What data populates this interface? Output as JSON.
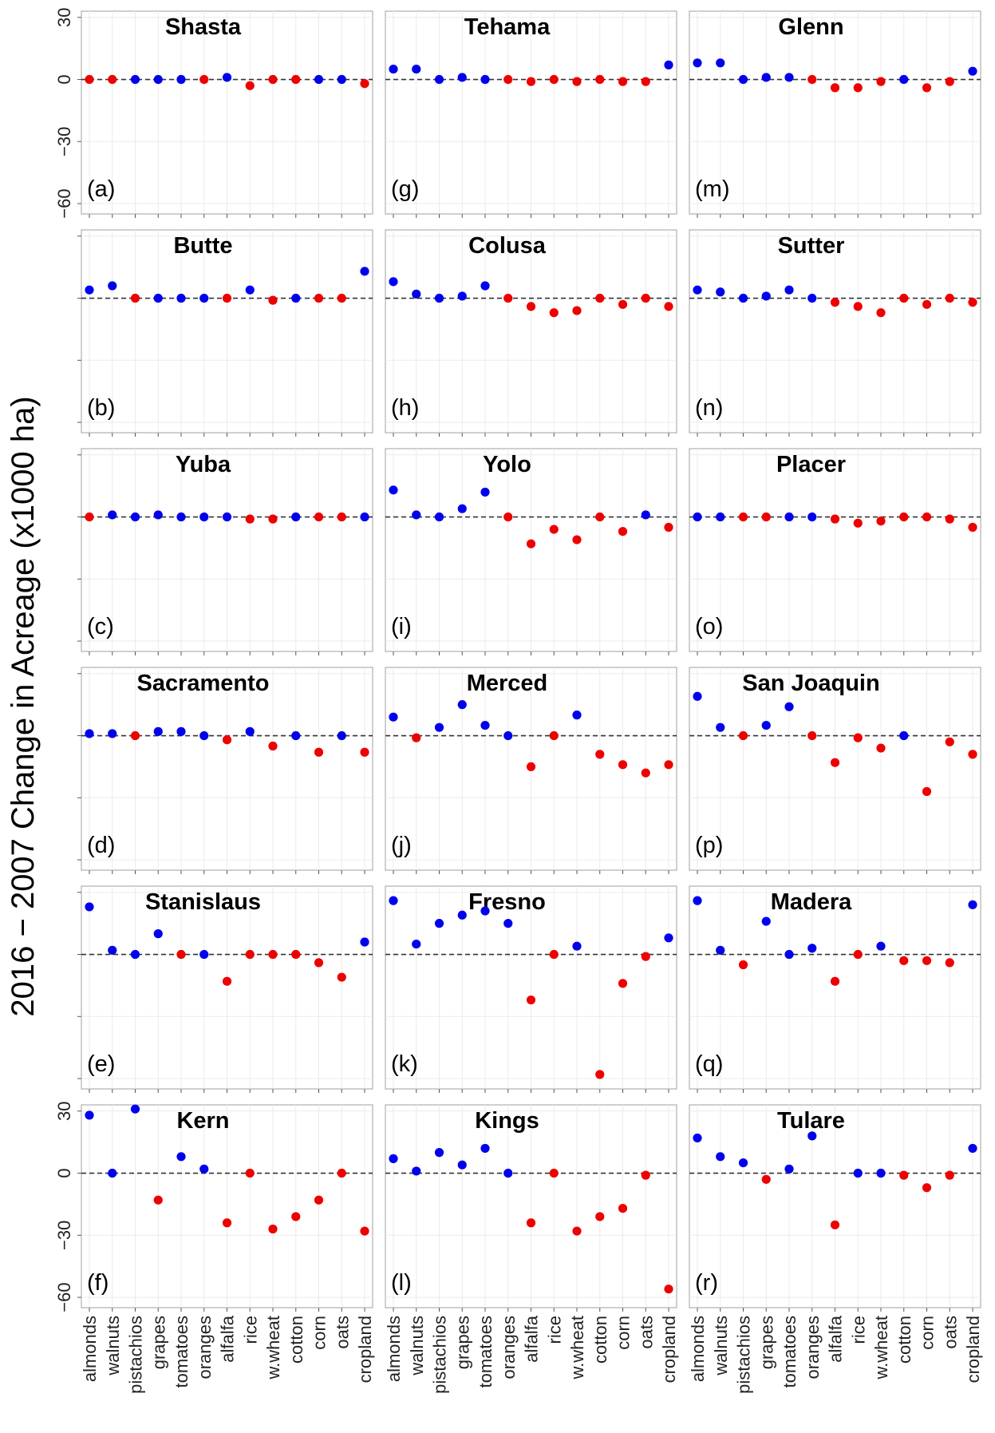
{
  "figure_ylabel": "2016 − 2007 Change in Acreage (x1000 ha)",
  "colors": {
    "increase": "#0000ee",
    "decrease": "#ee0000",
    "zero_line": "#333333",
    "frame": "#bfbfbf",
    "grid": "#ebebeb"
  },
  "chart_data": {
    "type": "scatter",
    "categories": [
      "almonds",
      "walnuts",
      "pistachios",
      "grapes",
      "tomatoes",
      "oranges",
      "alfalfa",
      "rice",
      "w.wheat",
      "cotton",
      "corn",
      "oats",
      "cropland"
    ],
    "ylim": [
      -65,
      33
    ],
    "yticks": [
      30,
      0,
      -30,
      -60
    ],
    "ytick_labels": [
      "30",
      "0",
      "−30",
      "−60"
    ],
    "panels": [
      {
        "id": "a",
        "label": "(a)",
        "title": "Shasta",
        "col": 0,
        "row": 0,
        "values": [
          0,
          0,
          0,
          0,
          0,
          0,
          1,
          -3,
          0,
          0,
          0,
          0,
          -2
        ],
        "colors": [
          "r",
          "r",
          "b",
          "b",
          "b",
          "r",
          "b",
          "r",
          "r",
          "r",
          "b",
          "b",
          "r"
        ]
      },
      {
        "id": "b",
        "label": "(b)",
        "title": "Butte",
        "col": 0,
        "row": 1,
        "values": [
          4,
          6,
          0,
          0,
          0,
          0,
          0,
          4,
          -1,
          0,
          0,
          0,
          13
        ],
        "colors": [
          "b",
          "b",
          "r",
          "b",
          "b",
          "b",
          "r",
          "b",
          "r",
          "b",
          "r",
          "r",
          "b"
        ]
      },
      {
        "id": "c",
        "label": "(c)",
        "title": "Yuba",
        "col": 0,
        "row": 2,
        "values": [
          0,
          1,
          0,
          1,
          0,
          0,
          0,
          -1,
          -1,
          0,
          0,
          0,
          0
        ],
        "colors": [
          "r",
          "b",
          "b",
          "b",
          "b",
          "b",
          "b",
          "r",
          "r",
          "b",
          "r",
          "r",
          "b"
        ]
      },
      {
        "id": "d",
        "label": "(d)",
        "title": "Sacramento",
        "col": 0,
        "row": 3,
        "values": [
          1,
          1,
          0,
          2,
          2,
          0,
          -2,
          2,
          -5,
          0,
          -8,
          0,
          -8
        ],
        "colors": [
          "b",
          "b",
          "r",
          "b",
          "b",
          "b",
          "r",
          "b",
          "r",
          "b",
          "r",
          "b",
          "r"
        ]
      },
      {
        "id": "e",
        "label": "(e)",
        "title": "Stanislaus",
        "col": 0,
        "row": 4,
        "values": [
          23,
          2,
          0,
          10,
          0,
          0,
          -13,
          0,
          0,
          0,
          -4,
          -11,
          6
        ],
        "colors": [
          "b",
          "b",
          "b",
          "b",
          "r",
          "b",
          "r",
          "r",
          "r",
          "r",
          "r",
          "r",
          "b"
        ]
      },
      {
        "id": "f",
        "label": "(f)",
        "title": "Kern",
        "col": 0,
        "row": 5,
        "values": [
          28,
          0,
          31,
          -13,
          8,
          2,
          -24,
          0,
          -27,
          -21,
          -13,
          0,
          -28
        ],
        "colors": [
          "b",
          "b",
          "b",
          "r",
          "b",
          "b",
          "r",
          "r",
          "r",
          "r",
          "r",
          "r",
          "r"
        ]
      },
      {
        "id": "g",
        "label": "(g)",
        "title": "Tehama",
        "col": 1,
        "row": 0,
        "values": [
          5,
          5,
          0,
          1,
          0,
          0,
          -1,
          0,
          -1,
          0,
          -1,
          -1,
          7
        ],
        "colors": [
          "b",
          "b",
          "b",
          "b",
          "b",
          "r",
          "r",
          "r",
          "r",
          "r",
          "r",
          "r",
          "b"
        ]
      },
      {
        "id": "h",
        "label": "(h)",
        "title": "Colusa",
        "col": 1,
        "row": 1,
        "values": [
          8,
          2,
          0,
          1,
          6,
          0,
          -4,
          -7,
          -6,
          0,
          -3,
          0,
          -4
        ],
        "colors": [
          "b",
          "b",
          "b",
          "b",
          "b",
          "r",
          "r",
          "r",
          "r",
          "r",
          "r",
          "r",
          "r"
        ]
      },
      {
        "id": "i",
        "label": "(i)",
        "title": "Yolo",
        "col": 1,
        "row": 2,
        "values": [
          13,
          1,
          0,
          4,
          12,
          0,
          -13,
          -6,
          -11,
          0,
          -7,
          1,
          -5
        ],
        "colors": [
          "b",
          "b",
          "b",
          "b",
          "b",
          "r",
          "r",
          "r",
          "r",
          "r",
          "r",
          "b",
          "r"
        ]
      },
      {
        "id": "j",
        "label": "(j)",
        "title": "Merced",
        "col": 1,
        "row": 3,
        "values": [
          9,
          -1,
          4,
          15,
          5,
          0,
          -15,
          0,
          10,
          -9,
          -14,
          -18,
          -14
        ],
        "colors": [
          "b",
          "r",
          "b",
          "b",
          "b",
          "b",
          "r",
          "r",
          "b",
          "r",
          "r",
          "r",
          "r"
        ]
      },
      {
        "id": "k",
        "label": "(k)",
        "title": "Fresno",
        "col": 1,
        "row": 4,
        "values": [
          26,
          5,
          15,
          19,
          21,
          15,
          -22,
          0,
          4,
          -58,
          -14,
          -1,
          8
        ],
        "colors": [
          "b",
          "b",
          "b",
          "b",
          "b",
          "b",
          "r",
          "r",
          "b",
          "r",
          "r",
          "r",
          "b"
        ]
      },
      {
        "id": "l",
        "label": "(l)",
        "title": "Kings",
        "col": 1,
        "row": 5,
        "values": [
          7,
          1,
          10,
          4,
          12,
          0,
          -24,
          0,
          -28,
          -21,
          -17,
          -1,
          -56
        ],
        "colors": [
          "b",
          "b",
          "b",
          "b",
          "b",
          "b",
          "r",
          "r",
          "r",
          "r",
          "r",
          "r",
          "r"
        ]
      },
      {
        "id": "m",
        "label": "(m)",
        "title": "Glenn",
        "col": 2,
        "row": 0,
        "values": [
          8,
          8,
          0,
          1,
          1,
          0,
          -4,
          -4,
          -1,
          0,
          -4,
          -1,
          4
        ],
        "colors": [
          "b",
          "b",
          "b",
          "b",
          "b",
          "r",
          "r",
          "r",
          "r",
          "b",
          "r",
          "r",
          "b"
        ]
      },
      {
        "id": "n",
        "label": "(n)",
        "title": "Sutter",
        "col": 2,
        "row": 1,
        "values": [
          4,
          3,
          0,
          1,
          4,
          0,
          -2,
          -4,
          -7,
          0,
          -3,
          0,
          -2
        ],
        "colors": [
          "b",
          "b",
          "b",
          "b",
          "b",
          "b",
          "r",
          "r",
          "r",
          "r",
          "r",
          "r",
          "r"
        ]
      },
      {
        "id": "o",
        "label": "(o)",
        "title": "Placer",
        "col": 2,
        "row": 2,
        "values": [
          0,
          0,
          0,
          0,
          0,
          0,
          -1,
          -3,
          -2,
          0,
          0,
          -1,
          -5
        ],
        "colors": [
          "b",
          "b",
          "r",
          "r",
          "b",
          "b",
          "r",
          "r",
          "r",
          "r",
          "r",
          "r",
          "r"
        ]
      },
      {
        "id": "p",
        "label": "(p)",
        "title": "San Joaquin",
        "col": 2,
        "row": 3,
        "values": [
          19,
          4,
          0,
          5,
          14,
          0,
          -13,
          -1,
          -6,
          0,
          -27,
          -3,
          -9
        ],
        "colors": [
          "b",
          "b",
          "r",
          "b",
          "b",
          "r",
          "r",
          "r",
          "r",
          "b",
          "r",
          "r",
          "r"
        ]
      },
      {
        "id": "q",
        "label": "(q)",
        "title": "Madera",
        "col": 2,
        "row": 4,
        "values": [
          26,
          2,
          -5,
          16,
          0,
          3,
          -13,
          0,
          4,
          -3,
          -3,
          -4,
          24
        ],
        "colors": [
          "b",
          "b",
          "r",
          "b",
          "b",
          "b",
          "r",
          "r",
          "b",
          "r",
          "r",
          "r",
          "b"
        ]
      },
      {
        "id": "r",
        "label": "(r)",
        "title": "Tulare",
        "col": 2,
        "row": 5,
        "values": [
          17,
          8,
          5,
          -3,
          2,
          18,
          -25,
          0,
          0,
          -1,
          -7,
          -1,
          12
        ],
        "colors": [
          "b",
          "b",
          "b",
          "r",
          "b",
          "b",
          "r",
          "b",
          "b",
          "r",
          "r",
          "r",
          "b"
        ]
      }
    ]
  }
}
